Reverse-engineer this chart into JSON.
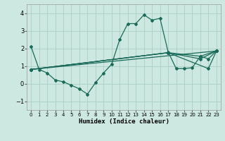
{
  "xlabel": "Humidex (Indice chaleur)",
  "bg_color": "#cce8e0",
  "grid_color": "#aacfc8",
  "line_color": "#1a6b5a",
  "xlim": [
    -0.5,
    23.5
  ],
  "ylim": [
    -1.5,
    4.5
  ],
  "xticks": [
    0,
    1,
    2,
    3,
    4,
    5,
    6,
    7,
    8,
    9,
    10,
    11,
    12,
    13,
    14,
    15,
    16,
    17,
    18,
    19,
    20,
    21,
    22,
    23
  ],
  "yticks": [
    -1,
    0,
    1,
    2,
    3,
    4
  ],
  "series1_x": [
    0,
    1,
    2,
    3,
    4,
    5,
    6,
    7,
    8,
    9,
    10,
    11,
    12,
    13,
    14,
    15,
    16,
    17,
    18,
    19,
    20,
    21,
    22,
    23
  ],
  "series1_y": [
    2.1,
    0.8,
    0.6,
    0.2,
    0.1,
    -0.1,
    -0.3,
    -0.6,
    0.05,
    0.6,
    1.1,
    2.5,
    3.4,
    3.4,
    3.9,
    3.6,
    3.7,
    1.8,
    0.85,
    0.85,
    0.9,
    1.55,
    1.4,
    1.85
  ],
  "series2_x": [
    0,
    23
  ],
  "series2_y": [
    0.8,
    1.85
  ],
  "series3_x": [
    0,
    17,
    21,
    23
  ],
  "series3_y": [
    0.8,
    1.75,
    1.55,
    1.85
  ],
  "series4_x": [
    0,
    17,
    21,
    23
  ],
  "series4_y": [
    0.8,
    1.75,
    1.4,
    1.85
  ],
  "series5_x": [
    0,
    17,
    22,
    23
  ],
  "series5_y": [
    0.8,
    1.75,
    0.85,
    1.85
  ]
}
